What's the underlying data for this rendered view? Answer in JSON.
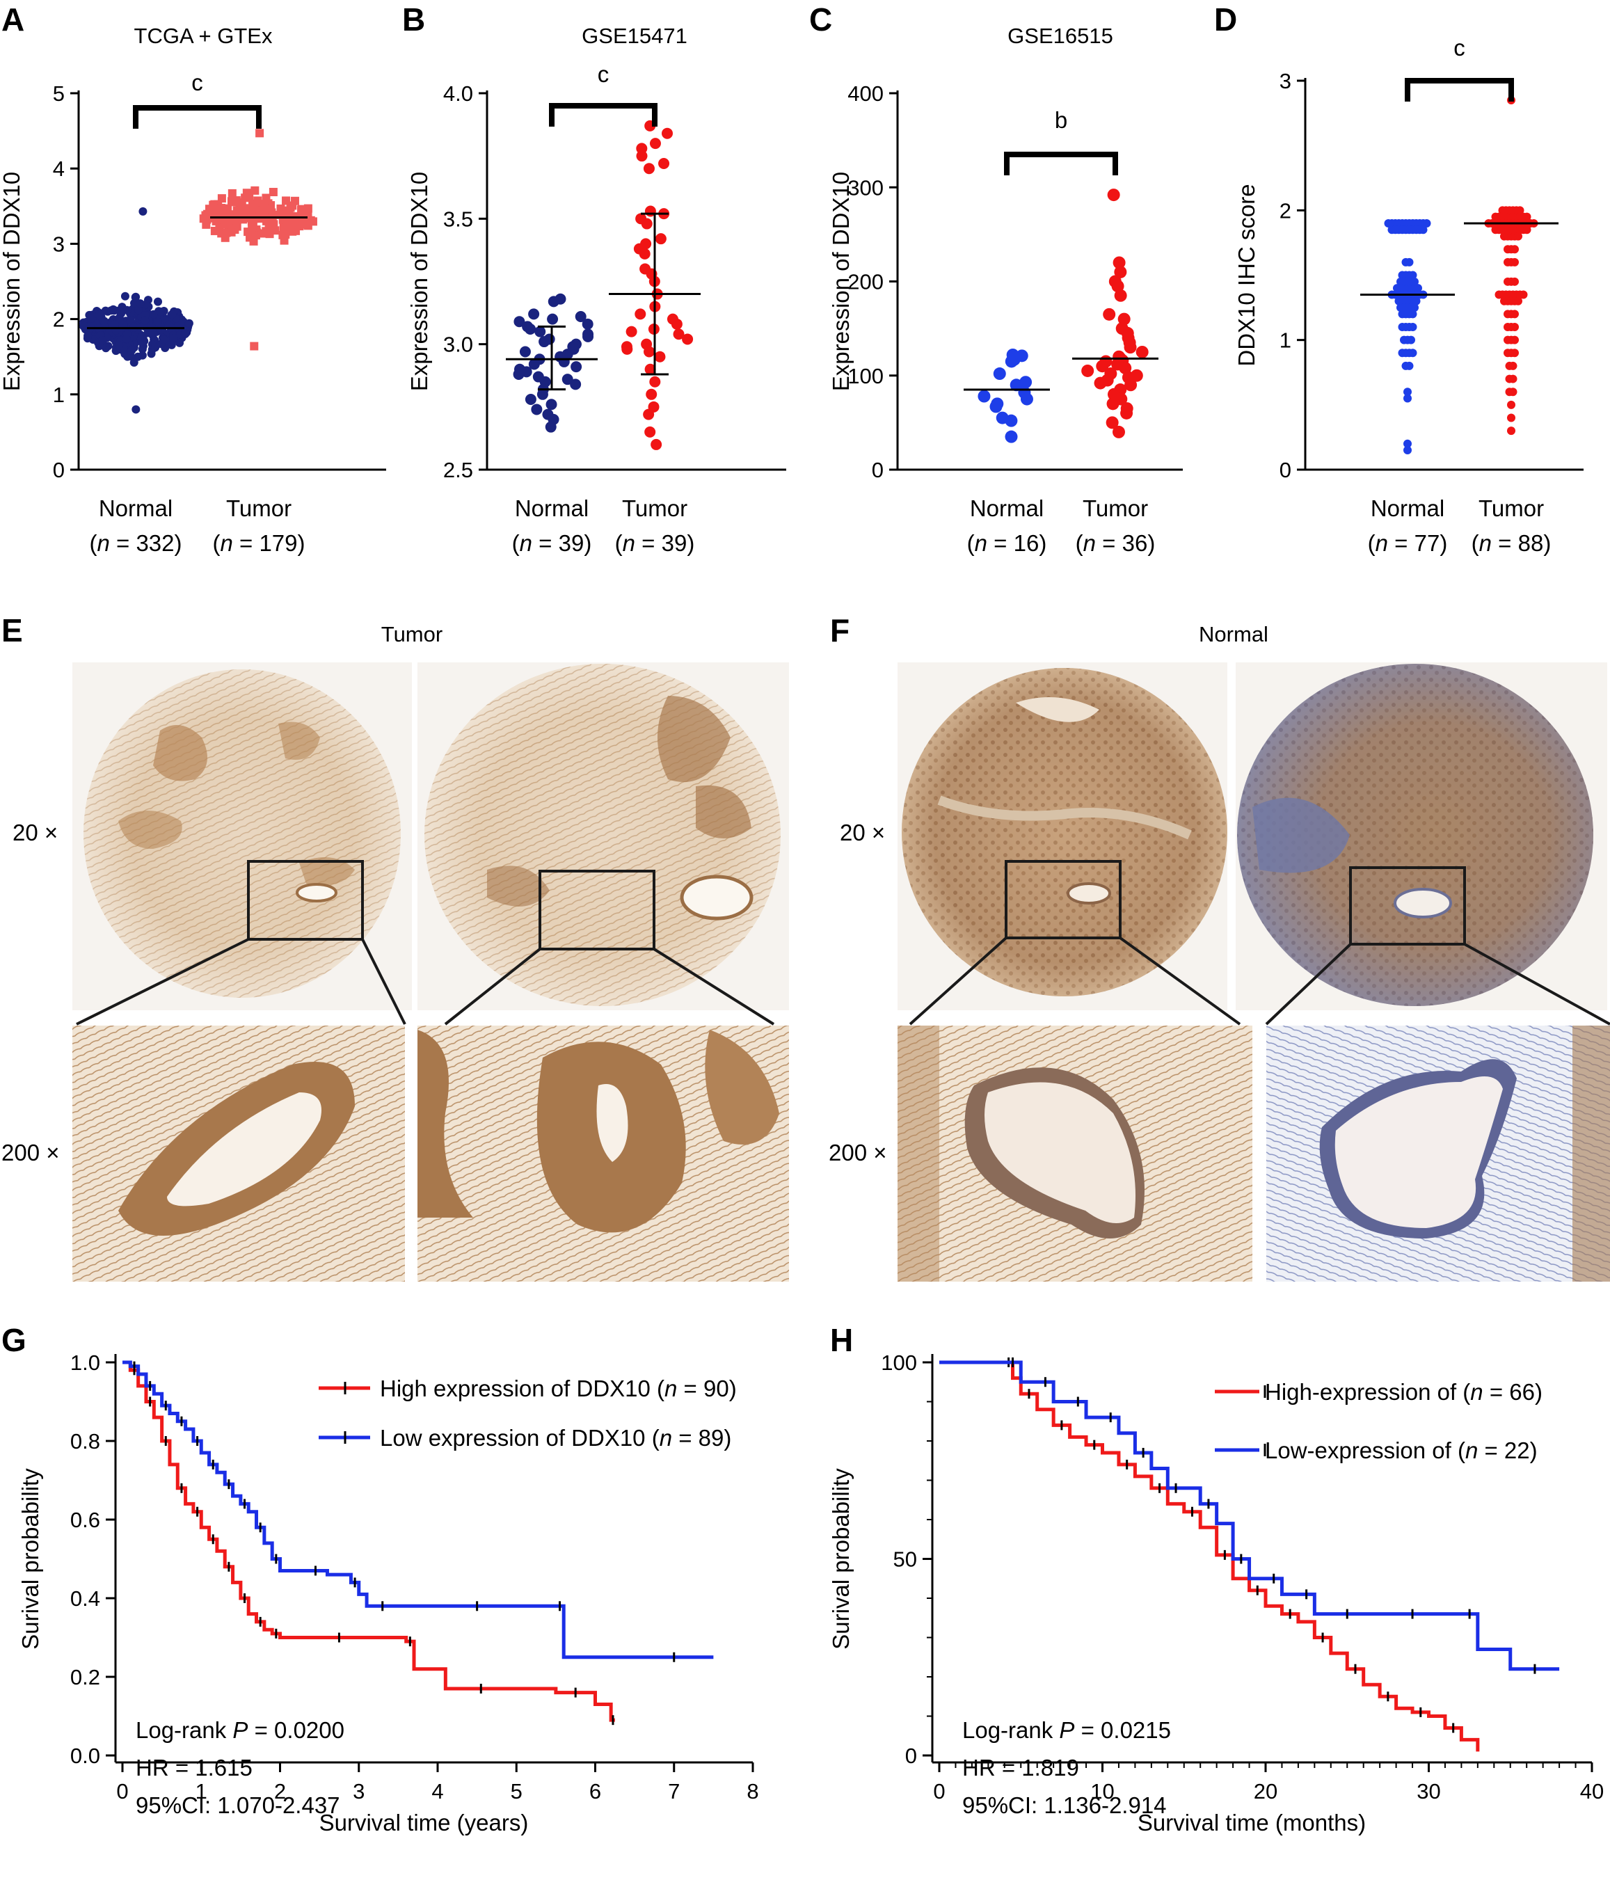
{
  "panels": {
    "A": {
      "letter": "A",
      "title": "TCGA + GTEx",
      "ylabel": "Expression of DDX10",
      "significance": "c"
    },
    "B": {
      "letter": "B",
      "title": "GSE15471",
      "ylabel": "Expression of DDX10",
      "significance": "c"
    },
    "C": {
      "letter": "C",
      "title": "GSE16515",
      "ylabel": "Expression of DDX10",
      "significance": "b"
    },
    "D": {
      "letter": "D",
      "title": "",
      "ylabel": "DDX10 IHC score",
      "significance": "c"
    },
    "E": {
      "letter": "E",
      "title": "Tumor",
      "mag_low": "20 ×",
      "mag_high": "200 ×"
    },
    "F": {
      "letter": "F",
      "title": "Normal",
      "mag_low": "20 ×",
      "mag_high": "200 ×"
    },
    "G": {
      "letter": "G",
      "xlabel": "Survival time (years)",
      "ylabel": "Surival probability",
      "legend_high": "High expression of DDX10 (",
      "legend_low": "Low expression of DDX10 (",
      "stat_p": "Log-rank P = 0.0200",
      "stat_hr": "HR = 1.615",
      "stat_ci": "95%CI: 1.070-2.437"
    },
    "H": {
      "letter": "H",
      "xlabel": "Survival time (months)",
      "ylabel": "Surival probability",
      "legend_high": "High-expression of (",
      "legend_low": "Low-expression of (",
      "stat_p": "Log-rank P = 0.0215",
      "stat_hr": "HR = 1.819",
      "stat_ci": "95%CI: 1.136-2.914"
    }
  },
  "colors": {
    "normal_A": "#1a237e",
    "normal_B": "#1a237e",
    "normal_C": "#1e3ee8",
    "normal_D": "#1e3ee8",
    "tumor": "#f01414",
    "tumor_A": "#f05a5a",
    "km_high": "#ef1a1a",
    "km_low": "#1a2ee6",
    "tissue": "#a87a4f",
    "tissue_blue": "#6c7bb3"
  },
  "chart_data": [
    {
      "id": "A",
      "type": "scatter",
      "title": "TCGA + GTEx",
      "ylabel": "Expression of DDX10",
      "ylim": [
        0,
        5
      ],
      "yticks": [
        0,
        1,
        2,
        3,
        4,
        5
      ],
      "categories": [
        "Normal",
        "Tumor"
      ],
      "n": [
        332,
        179
      ],
      "means": [
        1.88,
        3.35
      ],
      "series": [
        {
          "name": "Normal",
          "min": 0.8,
          "max": 3.43,
          "center": 1.88,
          "spread": 0.3
        },
        {
          "name": "Tumor",
          "min": 1.64,
          "max": 4.47,
          "center": 3.35,
          "spread": 0.28
        }
      ],
      "significance": "c"
    },
    {
      "id": "B",
      "type": "scatter",
      "title": "GSE15471",
      "ylabel": "Expression of DDX10",
      "ylim": [
        2.5,
        4.0
      ],
      "yticks": [
        2.5,
        3.0,
        3.5,
        4.0
      ],
      "categories": [
        "Normal",
        "Tumor"
      ],
      "n": [
        39,
        39
      ],
      "means": [
        2.94,
        3.2
      ],
      "sd_lower": [
        2.82,
        2.88
      ],
      "sd_upper": [
        3.07,
        3.52
      ],
      "series": [
        {
          "name": "Normal",
          "values": [
            3.18,
            3.17,
            3.12,
            3.11,
            3.1,
            3.09,
            3.08,
            3.07,
            3.06,
            3.05,
            3.04,
            3.03,
            3.02,
            3.01,
            3.0,
            2.99,
            2.98,
            2.97,
            2.96,
            2.95,
            2.94,
            2.93,
            2.92,
            2.91,
            2.9,
            2.89,
            2.88,
            2.87,
            2.86,
            2.85,
            2.84,
            2.82,
            2.8,
            2.78,
            2.76,
            2.74,
            2.72,
            2.7,
            2.67
          ]
        },
        {
          "name": "Tumor",
          "values": [
            3.87,
            3.84,
            3.8,
            3.78,
            3.75,
            3.72,
            3.7,
            3.53,
            3.52,
            3.5,
            3.48,
            3.42,
            3.4,
            3.38,
            3.36,
            3.3,
            3.28,
            3.25,
            3.2,
            3.15,
            3.12,
            3.1,
            3.08,
            3.06,
            3.05,
            3.04,
            3.02,
            3.0,
            2.99,
            2.98,
            2.97,
            2.95,
            2.9,
            2.85,
            2.8,
            2.75,
            2.72,
            2.65,
            2.6
          ]
        }
      ],
      "significance": "c"
    },
    {
      "id": "C",
      "type": "scatter",
      "title": "GSE16515",
      "ylabel": "Expression of DDX10",
      "ylim": [
        0,
        400
      ],
      "yticks": [
        0,
        100,
        200,
        300,
        400
      ],
      "categories": [
        "Normal",
        "Tumor"
      ],
      "n": [
        16,
        36
      ],
      "means": [
        85,
        118
      ],
      "series": [
        {
          "name": "Normal",
          "values": [
            122,
            121,
            120,
            117,
            115,
            102,
            93,
            90,
            82,
            78,
            75,
            70,
            67,
            55,
            52,
            35
          ]
        },
        {
          "name": "Tumor",
          "values": [
            292,
            220,
            210,
            200,
            195,
            185,
            165,
            160,
            150,
            145,
            140,
            135,
            130,
            125,
            120,
            118,
            116,
            115,
            112,
            110,
            108,
            105,
            102,
            100,
            98,
            95,
            92,
            90,
            85,
            80,
            75,
            70,
            65,
            60,
            50,
            40
          ]
        }
      ],
      "significance": "b"
    },
    {
      "id": "D",
      "type": "scatter",
      "title": "",
      "ylabel": "DDX10 IHC score",
      "ylim": [
        0,
        3
      ],
      "yticks": [
        0,
        1,
        2,
        3
      ],
      "categories": [
        "Normal",
        "Tumor"
      ],
      "n": [
        77,
        88
      ],
      "means": [
        1.35,
        1.9
      ],
      "series": [
        {
          "name": "Normal",
          "levels": [
            [
              1.9,
              12
            ],
            [
              1.85,
              10
            ],
            [
              1.6,
              2
            ],
            [
              1.5,
              4
            ],
            [
              1.45,
              5
            ],
            [
              1.4,
              7
            ],
            [
              1.35,
              10
            ],
            [
              1.3,
              6
            ],
            [
              1.25,
              5
            ],
            [
              1.2,
              4
            ],
            [
              1.1,
              4
            ],
            [
              1.0,
              3
            ],
            [
              0.9,
              4
            ],
            [
              0.8,
              2
            ],
            [
              0.6,
              1
            ],
            [
              0.55,
              1
            ],
            [
              0.2,
              1
            ],
            [
              0.15,
              1
            ]
          ]
        },
        {
          "name": "Tumor",
          "levels": [
            [
              2.85,
              1
            ],
            [
              2.0,
              6
            ],
            [
              1.95,
              10
            ],
            [
              1.9,
              14
            ],
            [
              1.85,
              10
            ],
            [
              1.8,
              5
            ],
            [
              1.7,
              3
            ],
            [
              1.6,
              3
            ],
            [
              1.45,
              3
            ],
            [
              1.35,
              8
            ],
            [
              1.3,
              5
            ],
            [
              1.2,
              3
            ],
            [
              1.1,
              3
            ],
            [
              1.0,
              3
            ],
            [
              0.9,
              3
            ],
            [
              0.8,
              2
            ],
            [
              0.7,
              2
            ],
            [
              0.6,
              2
            ],
            [
              0.5,
              1
            ],
            [
              0.4,
              1
            ],
            [
              0.3,
              1
            ]
          ]
        }
      ],
      "significance": "c"
    },
    {
      "id": "G",
      "type": "line",
      "xlabel": "Survival time (years)",
      "ylabel": "Surival probability",
      "xlim": [
        0,
        8
      ],
      "ylim": [
        0,
        1
      ],
      "xticks": [
        0,
        1,
        2,
        3,
        4,
        5,
        6,
        7,
        8
      ],
      "yticks": [
        0.0,
        0.2,
        0.4,
        0.6,
        0.8,
        1.0
      ],
      "series": [
        {
          "name": "High expression of DDX10",
          "n": 90,
          "x": [
            0,
            0.1,
            0.2,
            0.3,
            0.4,
            0.5,
            0.6,
            0.7,
            0.8,
            0.9,
            1.0,
            1.1,
            1.2,
            1.3,
            1.4,
            1.5,
            1.6,
            1.7,
            1.8,
            1.9,
            2.0,
            2.5,
            3.0,
            3.6,
            3.7,
            4.1,
            5.0,
            5.5,
            6.0,
            6.2,
            6.25
          ],
          "y": [
            1.0,
            0.98,
            0.94,
            0.9,
            0.86,
            0.8,
            0.74,
            0.68,
            0.64,
            0.62,
            0.58,
            0.55,
            0.52,
            0.48,
            0.44,
            0.4,
            0.36,
            0.34,
            0.32,
            0.31,
            0.3,
            0.3,
            0.3,
            0.29,
            0.22,
            0.17,
            0.17,
            0.16,
            0.13,
            0.09,
            0.09
          ]
        },
        {
          "name": "Low expression of DDX10",
          "n": 89,
          "x": [
            0,
            0.1,
            0.2,
            0.3,
            0.4,
            0.5,
            0.6,
            0.7,
            0.8,
            0.9,
            1.0,
            1.1,
            1.2,
            1.3,
            1.4,
            1.5,
            1.6,
            1.7,
            1.8,
            1.9,
            2.0,
            2.3,
            2.6,
            2.9,
            3.0,
            3.1,
            3.5,
            4.0,
            5.0,
            5.5,
            5.6,
            6.5,
            7.5
          ],
          "y": [
            1.0,
            0.99,
            0.97,
            0.94,
            0.92,
            0.89,
            0.87,
            0.85,
            0.83,
            0.8,
            0.77,
            0.74,
            0.72,
            0.69,
            0.66,
            0.64,
            0.62,
            0.58,
            0.54,
            0.5,
            0.47,
            0.47,
            0.46,
            0.44,
            0.41,
            0.38,
            0.38,
            0.38,
            0.38,
            0.38,
            0.25,
            0.25,
            0.25
          ]
        }
      ],
      "legend": "top-right",
      "annotations": [
        "Log-rank P = 0.0200",
        "HR = 1.615",
        "95%CI: 1.070-2.437"
      ]
    },
    {
      "id": "H",
      "type": "line",
      "xlabel": "Survival time (months)",
      "ylabel": "Surival probability",
      "xlim": [
        0,
        40
      ],
      "ylim": [
        0,
        100
      ],
      "xticks": [
        0,
        10,
        20,
        30,
        40
      ],
      "yticks": [
        0,
        50,
        100
      ],
      "series": [
        {
          "name": "High-expression of",
          "n": 66,
          "x": [
            0,
            4,
            4.5,
            5,
            6,
            7,
            8,
            9,
            10,
            11,
            12,
            13,
            14,
            15,
            16,
            17,
            18,
            19,
            20,
            21,
            22,
            23,
            24,
            25,
            26,
            27,
            28,
            29,
            30,
            31,
            32,
            33
          ],
          "y": [
            100,
            100,
            96,
            92,
            88,
            84,
            81,
            79,
            77,
            74,
            71,
            68,
            64,
            62,
            58,
            51,
            45,
            42,
            38,
            36,
            34,
            30,
            26,
            22,
            18,
            15,
            12,
            11,
            10,
            7,
            4,
            1
          ]
        },
        {
          "name": "Low-expression of",
          "n": 22,
          "x": [
            0,
            4,
            5,
            6,
            7,
            8,
            9,
            10,
            11,
            12,
            13,
            14,
            15,
            16,
            17,
            18,
            19,
            20,
            21,
            22,
            23,
            24,
            26,
            28,
            30,
            32,
            33,
            35,
            38
          ],
          "y": [
            100,
            100,
            95,
            95,
            90,
            90,
            86,
            86,
            82,
            77,
            73,
            68,
            68,
            64,
            59,
            50,
            45,
            45,
            41,
            41,
            36,
            36,
            36,
            36,
            36,
            36,
            27,
            22,
            22
          ]
        }
      ],
      "legend": "top-right",
      "annotations": [
        "Log-rank P = 0.0215",
        "HR = 1.819",
        "95%CI: 1.136-2.914"
      ]
    }
  ]
}
